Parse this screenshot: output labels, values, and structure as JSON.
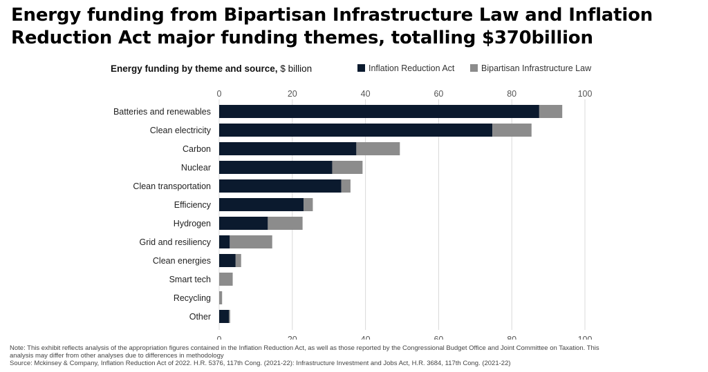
{
  "title": "Energy funding from Bipartisan Infrastructure Law and Inflation Reduction Act major funding themes, totalling $370billion",
  "note": "Note: This exhibit reflects analysis of the appropriation figures contained in the Inflation Reduction Act, as well as those reported by the Congressional Budget Office and Joint Committee on Taxation. This analysis may differ from other analyses due to differences in methodology",
  "note_line1": "Note: This exhibit reflects analysis of the appropriation figures contained in the Inflation Reduction Act, as well as those reported by the Congressional Budget Office and Joint Committee on Taxation. This",
  "note_line2": "analysis may differ from other analyses due to differences in methodology",
  "source": "Source:  Mckinsey & Company, Inflation Reduction Act of 2022. H.R. 5376, 117th Cong. (2021-22): Infrastructure Investment and Jobs Act, H.R. 3684, 117th Cong. (2021-22)",
  "chart_data": {
    "type": "bar",
    "orientation": "horizontal",
    "stacked": true,
    "title": "Energy funding by theme and source,",
    "title_unit": "$ billion",
    "categories": [
      "Batteries and renewables",
      "Clean electricity",
      "Carbon",
      "Nuclear",
      "Clean transportation",
      "Efficiency",
      "Hydrogen",
      "Grid and resiliency",
      "Clean energies",
      "Smart tech",
      "Recycling",
      "Other"
    ],
    "series": [
      {
        "name": "Inflation Reduction Act",
        "color": "#0b1a2e",
        "values": [
          87.5,
          74.7,
          37.5,
          30.9,
          33.4,
          23.1,
          13.3,
          2.9,
          4.5,
          0,
          0,
          2.7
        ]
      },
      {
        "name": "Bipartisan Infrastructure Law",
        "color": "#8c8c8c",
        "values": [
          6.3,
          10.7,
          11.9,
          8.3,
          2.5,
          2.5,
          9.5,
          11.6,
          1.5,
          3.7,
          0.8,
          0.3
        ]
      }
    ],
    "xlim": [
      0,
      100
    ],
    "xticks": [
      0,
      20,
      40,
      60,
      80,
      100
    ],
    "grid": true,
    "legend_position": "top-right"
  }
}
